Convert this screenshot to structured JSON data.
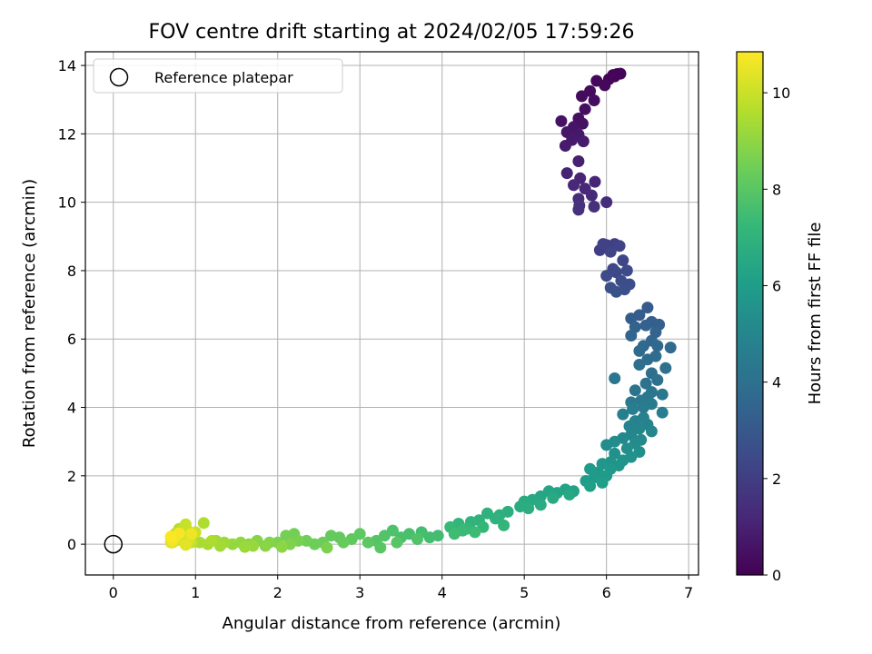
{
  "chart_data": {
    "type": "scatter",
    "title": "FOV centre drift starting at 2024/02/05 17:59:26",
    "xlabel": "Angular distance from reference (arcmin)",
    "ylabel": "Rotation from reference (arcmin)",
    "xlim": [
      -0.34,
      7.12
    ],
    "ylim": [
      -0.9,
      14.4
    ],
    "xticks": [
      0,
      1,
      2,
      3,
      4,
      5,
      6,
      7
    ],
    "xtick_labels": [
      "0",
      "1",
      "2",
      "3",
      "4",
      "5",
      "6",
      "7"
    ],
    "yticks": [
      0,
      2,
      4,
      6,
      8,
      10,
      12,
      14
    ],
    "ytick_labels": [
      "0",
      "2",
      "4",
      "6",
      "8",
      "10",
      "12",
      "14"
    ],
    "grid": true,
    "legend": {
      "location": "upper-left",
      "entries": [
        "Reference platepar"
      ]
    },
    "reference_point": {
      "label": "Reference platepar",
      "x": 0,
      "y": 0,
      "marker": "open-circle",
      "color": "#000000"
    },
    "colorbar": {
      "label": "Hours from first FF file",
      "range": [
        0,
        10.85
      ],
      "ticks": [
        0,
        2,
        4,
        6,
        8,
        10
      ],
      "tick_labels": [
        "0",
        "2",
        "4",
        "6",
        "8",
        "10"
      ],
      "colormap": "viridis"
    },
    "colormap_stops": [
      "#440154",
      "#482878",
      "#3e4989",
      "#31688e",
      "#26828e",
      "#1f9e89",
      "#35b779",
      "#6ece58",
      "#b5de2b",
      "#fde725"
    ],
    "series": [
      {
        "colored_by": "Hours from first FF file",
        "points": [
          [
            6.08,
            13.72,
            0.05
          ],
          [
            6.13,
            13.75,
            0.08
          ],
          [
            6.17,
            13.76,
            0.1
          ],
          [
            6.03,
            13.6,
            0.13
          ],
          [
            6.1,
            13.68,
            0.17
          ],
          [
            5.88,
            13.55,
            0.2
          ],
          [
            5.98,
            13.42,
            0.25
          ],
          [
            5.8,
            13.25,
            0.3
          ],
          [
            5.7,
            13.1,
            0.34
          ],
          [
            5.85,
            12.98,
            0.38
          ],
          [
            5.74,
            12.72,
            0.42
          ],
          [
            5.66,
            12.45,
            0.47
          ],
          [
            5.71,
            12.3,
            0.5
          ],
          [
            5.45,
            12.37,
            0.55
          ],
          [
            5.6,
            12.2,
            0.6
          ],
          [
            5.52,
            12.05,
            0.65
          ],
          [
            5.66,
            11.98,
            0.7
          ],
          [
            5.58,
            11.82,
            0.75
          ],
          [
            5.72,
            11.78,
            0.8
          ],
          [
            5.5,
            11.65,
            0.85
          ],
          [
            5.66,
            11.2,
            0.95
          ],
          [
            5.52,
            10.85,
            1.05
          ],
          [
            5.68,
            10.7,
            1.1
          ],
          [
            5.86,
            10.6,
            1.15
          ],
          [
            5.6,
            10.5,
            1.2
          ],
          [
            5.74,
            10.4,
            1.25
          ],
          [
            5.82,
            10.2,
            1.3
          ],
          [
            5.66,
            10.1,
            1.35
          ],
          [
            6.0,
            10.0,
            1.4
          ],
          [
            5.85,
            9.87,
            1.45
          ],
          [
            5.66,
            9.78,
            1.5
          ],
          [
            5.67,
            9.9,
            1.55
          ],
          [
            5.92,
            8.6,
            2.0
          ],
          [
            6.0,
            8.75,
            2.05
          ],
          [
            6.1,
            8.78,
            2.1
          ],
          [
            5.96,
            8.78,
            2.15
          ],
          [
            6.16,
            8.72,
            2.2
          ],
          [
            6.05,
            8.55,
            2.25
          ],
          [
            6.2,
            8.3,
            2.3
          ],
          [
            6.08,
            8.05,
            2.35
          ],
          [
            6.12,
            7.95,
            2.4
          ],
          [
            6.25,
            8.0,
            2.45
          ],
          [
            6.0,
            7.85,
            2.5
          ],
          [
            6.18,
            7.7,
            2.55
          ],
          [
            6.28,
            7.6,
            2.6
          ],
          [
            6.05,
            7.5,
            2.65
          ],
          [
            6.22,
            7.45,
            2.7
          ],
          [
            6.12,
            7.38,
            2.75
          ],
          [
            6.5,
            6.92,
            3.1
          ],
          [
            6.4,
            6.7,
            3.15
          ],
          [
            6.3,
            6.6,
            3.2
          ],
          [
            6.55,
            6.5,
            3.25
          ],
          [
            6.64,
            6.42,
            3.3
          ],
          [
            6.48,
            6.4,
            3.35
          ],
          [
            6.35,
            6.35,
            3.4
          ],
          [
            6.6,
            6.2,
            3.45
          ],
          [
            6.3,
            6.1,
            3.5
          ],
          [
            6.55,
            5.95,
            3.55
          ],
          [
            6.45,
            5.8,
            3.6
          ],
          [
            6.62,
            5.8,
            3.65
          ],
          [
            6.78,
            5.75,
            3.7
          ],
          [
            6.4,
            5.65,
            3.75
          ],
          [
            6.6,
            5.5,
            3.8
          ],
          [
            6.5,
            5.4,
            3.85
          ],
          [
            6.4,
            5.25,
            3.9
          ],
          [
            6.55,
            5.0,
            3.95
          ],
          [
            6.72,
            5.15,
            4.0
          ],
          [
            6.62,
            4.8,
            4.05
          ],
          [
            6.48,
            4.7,
            4.1
          ],
          [
            6.35,
            4.5,
            4.15
          ],
          [
            6.1,
            4.85,
            4.2
          ],
          [
            6.55,
            4.45,
            4.25
          ],
          [
            6.68,
            4.38,
            4.3
          ],
          [
            6.5,
            4.3,
            4.35
          ],
          [
            6.42,
            4.2,
            4.4
          ],
          [
            6.3,
            4.15,
            4.45
          ],
          [
            6.55,
            4.1,
            4.5
          ],
          [
            6.45,
            4.0,
            4.55
          ],
          [
            6.32,
            3.95,
            4.6
          ],
          [
            6.68,
            3.85,
            4.65
          ],
          [
            6.2,
            3.8,
            4.7
          ],
          [
            6.45,
            3.7,
            4.75
          ],
          [
            6.35,
            3.6,
            4.8
          ],
          [
            6.5,
            3.5,
            4.85
          ],
          [
            6.28,
            3.45,
            4.9
          ],
          [
            6.4,
            3.38,
            4.95
          ],
          [
            6.55,
            3.3,
            5.0
          ],
          [
            6.3,
            3.2,
            5.05
          ],
          [
            6.2,
            3.1,
            5.1
          ],
          [
            6.42,
            3.05,
            5.15
          ],
          [
            6.35,
            2.95,
            5.2
          ],
          [
            6.0,
            2.9,
            5.25
          ],
          [
            6.1,
            3.0,
            5.3
          ],
          [
            6.25,
            2.8,
            5.35
          ],
          [
            6.4,
            2.7,
            5.4
          ],
          [
            6.1,
            2.65,
            5.45
          ],
          [
            6.3,
            2.55,
            5.5
          ],
          [
            6.2,
            2.45,
            5.55
          ],
          [
            6.05,
            2.4,
            5.6
          ],
          [
            6.15,
            2.3,
            5.65
          ],
          [
            5.95,
            2.35,
            5.7
          ],
          [
            6.05,
            2.2,
            5.75
          ],
          [
            5.9,
            2.1,
            5.8
          ],
          [
            5.8,
            2.2,
            5.85
          ],
          [
            6.0,
            2.0,
            5.9
          ],
          [
            5.85,
            1.95,
            5.95
          ],
          [
            5.75,
            1.85,
            6.0
          ],
          [
            5.95,
            1.8,
            6.05
          ],
          [
            5.8,
            1.7,
            6.1
          ],
          [
            5.6,
            1.55,
            6.2
          ],
          [
            5.5,
            1.6,
            6.25
          ],
          [
            5.4,
            1.5,
            6.3
          ],
          [
            5.3,
            1.55,
            6.35
          ],
          [
            5.2,
            1.4,
            6.4
          ],
          [
            5.55,
            1.45,
            6.45
          ],
          [
            5.1,
            1.3,
            6.5
          ],
          [
            5.35,
            1.35,
            6.55
          ],
          [
            5.0,
            1.25,
            6.6
          ],
          [
            5.2,
            1.15,
            6.65
          ],
          [
            4.95,
            1.1,
            6.7
          ],
          [
            5.05,
            1.05,
            6.75
          ],
          [
            4.8,
            0.95,
            6.8
          ],
          [
            4.7,
            0.85,
            6.85
          ],
          [
            4.55,
            0.9,
            6.9
          ],
          [
            4.65,
            0.75,
            6.95
          ],
          [
            4.45,
            0.7,
            7.0
          ],
          [
            4.35,
            0.65,
            7.05
          ],
          [
            4.2,
            0.6,
            7.1
          ],
          [
            4.75,
            0.55,
            7.15
          ],
          [
            4.5,
            0.5,
            7.2
          ],
          [
            4.3,
            0.45,
            7.25
          ],
          [
            4.1,
            0.5,
            7.3
          ],
          [
            4.25,
            0.4,
            7.35
          ],
          [
            4.4,
            0.35,
            7.4
          ],
          [
            4.15,
            0.3,
            7.45
          ],
          [
            3.95,
            0.25,
            7.5
          ],
          [
            3.85,
            0.2,
            7.55
          ],
          [
            3.75,
            0.35,
            7.6
          ],
          [
            3.6,
            0.3,
            7.65
          ],
          [
            3.5,
            0.2,
            7.7
          ],
          [
            3.4,
            0.4,
            7.75
          ],
          [
            3.7,
            0.15,
            7.8
          ],
          [
            3.3,
            0.25,
            7.85
          ],
          [
            3.2,
            0.1,
            7.9
          ],
          [
            3.45,
            0.05,
            7.95
          ],
          [
            3.25,
            -0.1,
            8.0
          ],
          [
            3.1,
            0.05,
            8.05
          ],
          [
            3.0,
            0.3,
            8.1
          ],
          [
            2.9,
            0.15,
            8.15
          ],
          [
            2.75,
            0.2,
            8.2
          ],
          [
            2.65,
            0.25,
            8.25
          ],
          [
            2.8,
            0.05,
            8.3
          ],
          [
            2.55,
            0.05,
            8.35
          ],
          [
            2.45,
            0.0,
            8.4
          ],
          [
            2.35,
            0.1,
            8.45
          ],
          [
            2.2,
            0.3,
            8.5
          ],
          [
            2.1,
            0.25,
            8.55
          ],
          [
            2.25,
            0.1,
            8.6
          ],
          [
            2.6,
            -0.1,
            8.65
          ],
          [
            2.0,
            0.05,
            8.7
          ],
          [
            2.15,
            0.0,
            8.75
          ],
          [
            1.9,
            0.05,
            8.8
          ],
          [
            1.75,
            0.1,
            8.85
          ],
          [
            1.85,
            -0.05,
            8.9
          ],
          [
            2.05,
            -0.08,
            8.95
          ],
          [
            1.65,
            0.0,
            9.0
          ],
          [
            1.55,
            0.05,
            9.05
          ],
          [
            1.45,
            0.0,
            9.1
          ],
          [
            1.7,
            -0.05,
            9.15
          ],
          [
            1.6,
            -0.08,
            9.2
          ],
          [
            1.35,
            0.05,
            9.25
          ],
          [
            1.25,
            0.1,
            9.3
          ],
          [
            1.3,
            -0.05,
            9.35
          ],
          [
            1.15,
            0.0,
            9.4
          ],
          [
            1.05,
            0.05,
            9.45
          ],
          [
            1.2,
            0.1,
            9.5
          ],
          [
            1.1,
            0.62,
            9.55
          ],
          [
            0.95,
            0.25,
            9.6
          ],
          [
            0.9,
            0.4,
            9.65
          ],
          [
            0.8,
            0.45,
            9.7
          ],
          [
            0.85,
            0.15,
            9.75
          ],
          [
            0.75,
            0.3,
            9.8
          ],
          [
            0.95,
            0.05,
            9.85
          ],
          [
            0.72,
            0.05,
            9.9
          ],
          [
            0.88,
            0.58,
            9.95
          ],
          [
            1.0,
            0.35,
            10.0
          ],
          [
            0.85,
            0.25,
            10.05
          ],
          [
            0.7,
            0.2,
            10.1
          ],
          [
            0.78,
            0.12,
            10.15
          ],
          [
            0.92,
            0.12,
            10.2
          ],
          [
            0.7,
            0.05,
            10.3
          ],
          [
            0.88,
            -0.02,
            10.4
          ],
          [
            0.75,
            0.18,
            10.5
          ],
          [
            0.95,
            0.3,
            10.6
          ],
          [
            0.72,
            0.1,
            10.7
          ],
          [
            0.8,
            0.32,
            10.75
          ],
          [
            0.7,
            0.22,
            10.8
          ]
        ]
      }
    ]
  }
}
